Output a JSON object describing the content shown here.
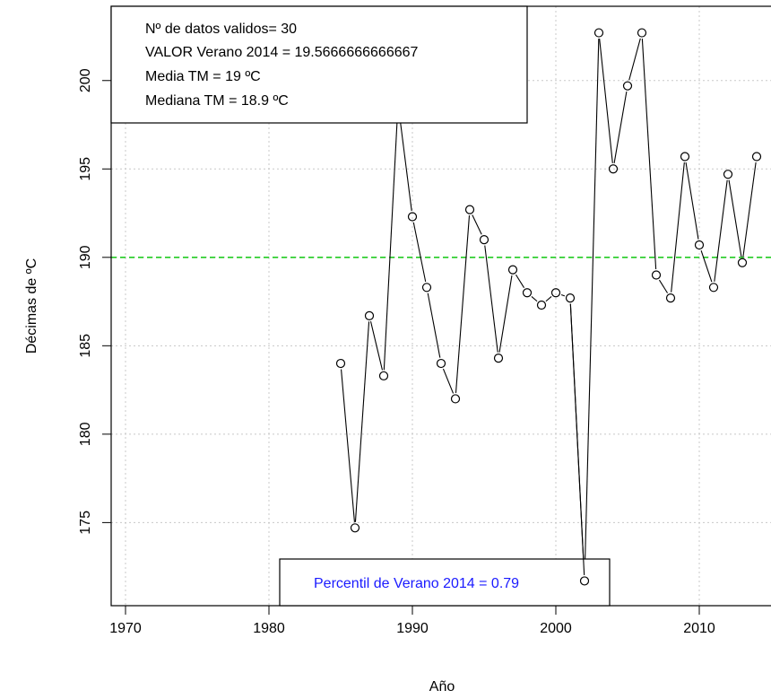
{
  "chart_data": {
    "type": "line",
    "xlabel": "Año",
    "ylabel": "Décimas de ºC",
    "xlim": [
      1969,
      2015
    ],
    "ylim": [
      170.3,
      204.2
    ],
    "x_ticks": [
      1970,
      1980,
      1990,
      2000,
      2010
    ],
    "y_ticks": [
      175,
      180,
      185,
      190,
      195,
      200
    ],
    "grid": true,
    "reference_line": {
      "y": 190,
      "color": "#22cc22",
      "style": "dashed"
    },
    "series": [
      {
        "x": [
          1985,
          1986,
          1987,
          1988,
          1989,
          1990,
          1991,
          1992,
          1993,
          1994,
          1995,
          1996,
          1997,
          1998,
          1999,
          2000,
          2001,
          2002,
          2003,
          2004,
          2005,
          2006,
          2007,
          2008,
          2009,
          2010,
          2011,
          2012,
          2013,
          2014
        ],
        "y": [
          184.0,
          174.7,
          186.7,
          183.3,
          198.7,
          192.3,
          188.3,
          184.0,
          182.0,
          192.7,
          191.0,
          184.3,
          189.3,
          188.0,
          187.3,
          188.0,
          187.7,
          171.7,
          202.7,
          195.0,
          199.7,
          202.7,
          189.0,
          187.7,
          195.7,
          190.7,
          188.3,
          194.7,
          189.7,
          195.7
        ]
      }
    ],
    "info_box": {
      "lines": [
        "Nº de datos validos= 30",
        "VALOR Verano  2014 = 19.5666666666667",
        "Media TM = 19 ºC",
        "Mediana TM = 18.9 ºC"
      ]
    },
    "percentile_box": {
      "text": "Percentil de  Verano  2014 = 0.79",
      "color": "#1a1aff"
    },
    "colors": {
      "line": "#000000",
      "grid": "#c8c8c8",
      "axis": "#000000"
    }
  }
}
